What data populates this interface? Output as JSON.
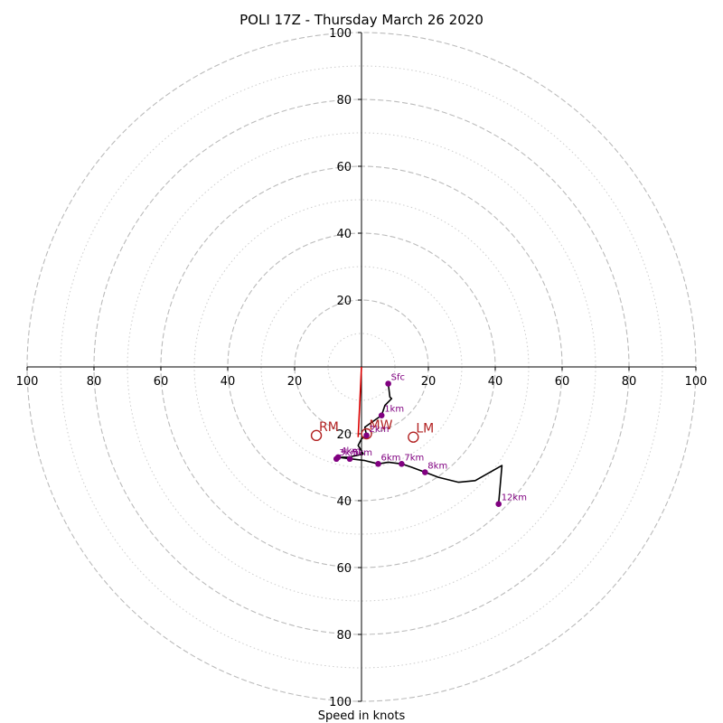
{
  "chart_data": {
    "type": "hodograph",
    "title": "POLI 17Z - Thursday March 26 2020",
    "xlabel": "Speed in knots",
    "xlim": [
      -100,
      100
    ],
    "ylim": [
      -100,
      100
    ],
    "rings_major": [
      20,
      40,
      60,
      80,
      100
    ],
    "rings_minor": [
      10,
      30,
      50,
      70,
      90
    ],
    "tick_labels": [
      "100",
      "80",
      "60",
      "40",
      "20",
      "20",
      "40",
      "60",
      "80",
      "100"
    ],
    "hodograph_trace": [
      [
        8,
        -5
      ],
      [
        8.5,
        -9
      ],
      [
        9,
        -9.5
      ],
      [
        7,
        -11.5
      ],
      [
        6,
        -14.5
      ],
      [
        1,
        -18
      ],
      [
        1.5,
        -20.5
      ],
      [
        0,
        -21.5
      ],
      [
        -1,
        -23.5
      ],
      [
        0.5,
        -26
      ],
      [
        -1.5,
        -26.5
      ],
      [
        -4,
        -27
      ],
      [
        -6.5,
        -27
      ],
      [
        -7.5,
        -27.5
      ],
      [
        -7,
        -27
      ],
      [
        -3,
        -27.5
      ],
      [
        1,
        -28
      ],
      [
        5,
        -29
      ],
      [
        8,
        -28.5
      ],
      [
        12,
        -29
      ],
      [
        15,
        -30
      ],
      [
        19,
        -31.5
      ],
      [
        23,
        -33
      ],
      [
        29,
        -34.5
      ],
      [
        34,
        -34
      ],
      [
        42,
        -29.5
      ],
      [
        41,
        -41
      ]
    ],
    "height_points": [
      {
        "label": "Sfc",
        "x": 8,
        "y": -5
      },
      {
        "label": "1km",
        "x": 6,
        "y": -14.5
      },
      {
        "label": "2km",
        "x": 1.5,
        "y": -20.5
      },
      {
        "label": "3km",
        "x": -7.5,
        "y": -27.5
      },
      {
        "label": "4km",
        "x": -7,
        "y": -27
      },
      {
        "label": "5km",
        "x": -3.5,
        "y": -27.5
      },
      {
        "label": "6km",
        "x": 5,
        "y": -29
      },
      {
        "label": "7km",
        "x": 12,
        "y": -29
      },
      {
        "label": "8km",
        "x": 19,
        "y": -31.5
      },
      {
        "label": "12km",
        "x": 41,
        "y": -41
      }
    ],
    "storm_motions": [
      {
        "label": "RM",
        "x": -13.5,
        "y": -20.5
      },
      {
        "label": "MW",
        "x": 1.5,
        "y": -20
      },
      {
        "label": "LM",
        "x": 15.5,
        "y": -21
      }
    ],
    "shear_vector": {
      "from": [
        0,
        0
      ],
      "to": [
        -1,
        -21
      ]
    },
    "colors": {
      "trace": "#000000",
      "points": "#800080",
      "motion": "#b22222",
      "shear": "#dd0000",
      "grid": "#bbbbbb"
    }
  }
}
